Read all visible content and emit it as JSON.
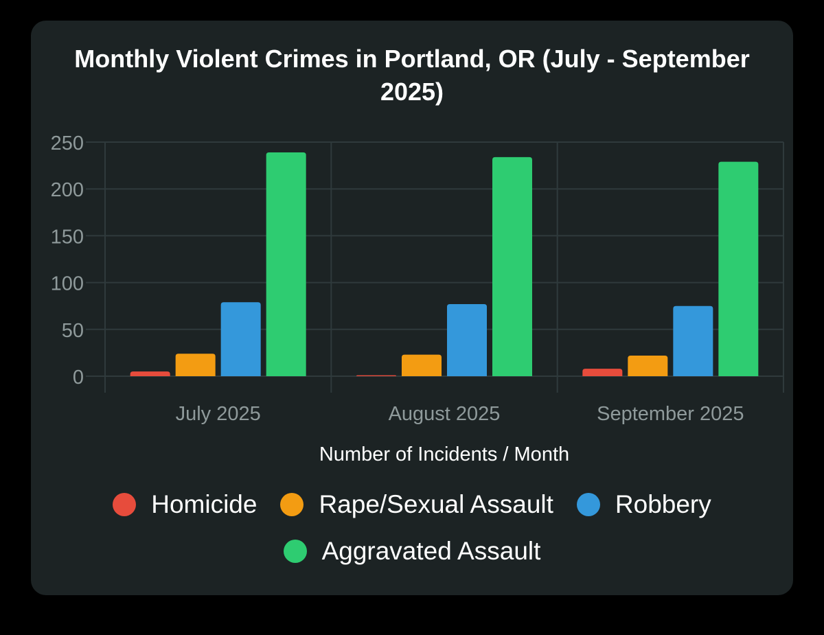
{
  "chart_data": {
    "type": "bar",
    "title": "Monthly Violent Crimes in Portland, OR (July - September 2025)",
    "title_lines": [
      "Monthly Violent Crimes in Portland, OR (July - September",
      "2025)"
    ],
    "xlabel": "Number of Incidents / Month",
    "ylabel": "",
    "ylim": [
      0,
      250
    ],
    "yticks": [
      0,
      50,
      100,
      150,
      200,
      250
    ],
    "grid": true,
    "legend_position": "bottom",
    "categories": [
      "July 2025",
      "August 2025",
      "September 2025"
    ],
    "series": [
      {
        "name": "Homicide",
        "color": "#e74c3c",
        "values": [
          5,
          1,
          8
        ]
      },
      {
        "name": "Rape/Sexual Assault",
        "color": "#f39c12",
        "values": [
          24,
          23,
          22
        ]
      },
      {
        "name": "Robbery",
        "color": "#3498db",
        "values": [
          79,
          77,
          75
        ]
      },
      {
        "name": "Aggravated Assault",
        "color": "#2ecc71",
        "values": [
          239,
          234,
          229
        ]
      }
    ]
  },
  "colors": {
    "background": "#000000",
    "card": "#1c2324",
    "grid": "#2f3a3c",
    "tick_text": "#8f9a9b",
    "text": "#ffffff"
  }
}
